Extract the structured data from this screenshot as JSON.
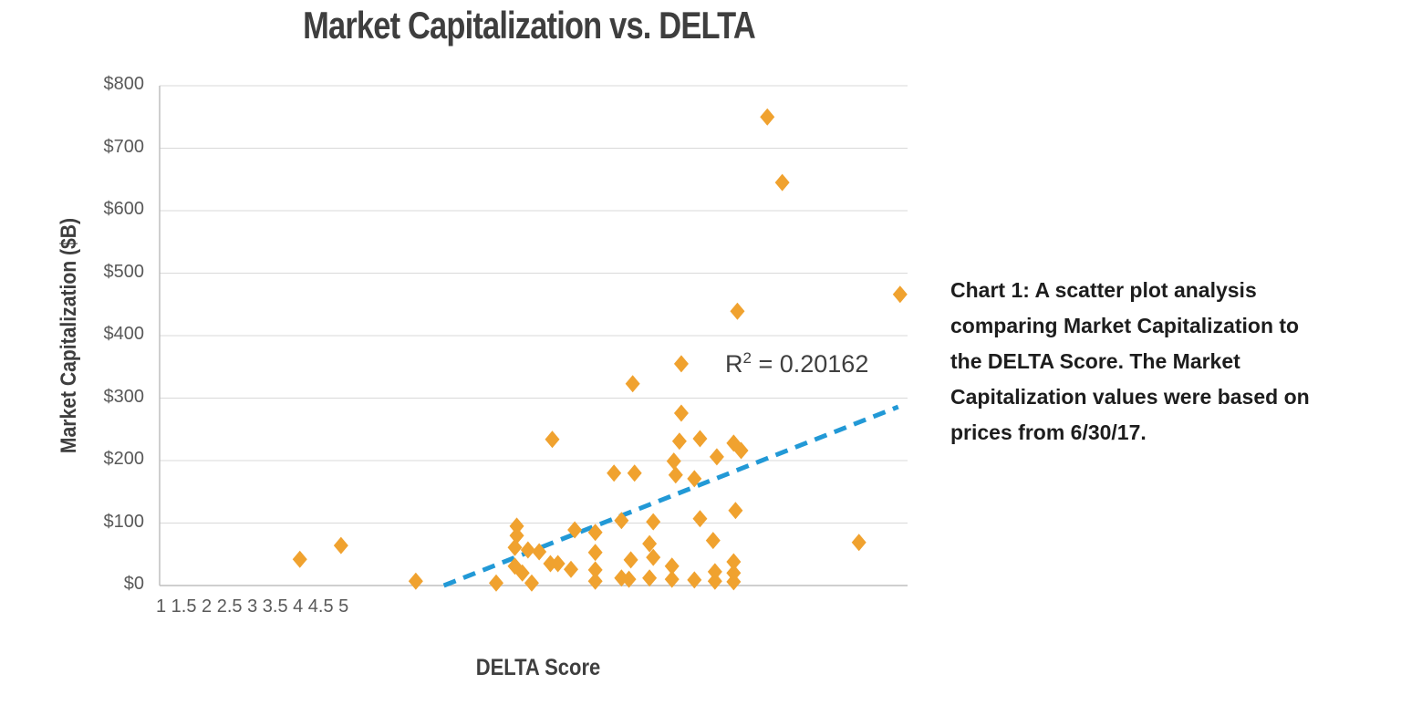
{
  "caption": {
    "lines": [
      "Chart 1: A scatter plot analysis",
      "comparing Market Capitalization to",
      "the DELTA Score. The Market",
      "Capitalization values were based on",
      "prices from 6/30/17."
    ]
  },
  "chart_data": {
    "type": "scatter",
    "title": "Market Capitalization vs. DELTA",
    "xlabel": "DELTA Score",
    "ylabel": "Market Capitalization ($B)",
    "xlim": [
      1,
      5
    ],
    "ylim": [
      0,
      800
    ],
    "grid": "horizontal",
    "gridline_color": "#d9d9d9",
    "axis_line_color": "#bfbfbf",
    "x_tick_labels": [
      "1",
      "1.5",
      "2",
      "2.5",
      "3",
      "3.5",
      "4",
      "4.5",
      "5"
    ],
    "y_tick_labels": [
      "$800",
      "$700",
      "$600",
      "$500",
      "$400",
      "$300",
      "$200",
      "$100",
      "$0"
    ],
    "r_squared": 0.20162,
    "r_squared_parts": {
      "base": "R",
      "sup": "2",
      "rest": " = 0.20162"
    },
    "series": [
      {
        "name": "Market Capitalization vs. DELTA",
        "marker": "diamond",
        "color": "#F0A22F",
        "points": [
          {
            "delta": 1.75,
            "cap_b": 42
          },
          {
            "delta": 1.97,
            "cap_b": 64
          },
          {
            "delta": 2.37,
            "cap_b": 7
          },
          {
            "delta": 2.8,
            "cap_b": 4
          },
          {
            "delta": 2.91,
            "cap_b": 95
          },
          {
            "delta": 2.91,
            "cap_b": 80
          },
          {
            "delta": 2.9,
            "cap_b": 61
          },
          {
            "delta": 2.97,
            "cap_b": 57
          },
          {
            "delta": 3.03,
            "cap_b": 54
          },
          {
            "delta": 2.9,
            "cap_b": 31
          },
          {
            "delta": 2.94,
            "cap_b": 20
          },
          {
            "delta": 2.99,
            "cap_b": 4
          },
          {
            "delta": 3.09,
            "cap_b": 35
          },
          {
            "delta": 3.13,
            "cap_b": 35
          },
          {
            "delta": 3.2,
            "cap_b": 26
          },
          {
            "delta": 3.22,
            "cap_b": 89
          },
          {
            "delta": 3.33,
            "cap_b": 85
          },
          {
            "delta": 3.33,
            "cap_b": 53
          },
          {
            "delta": 3.33,
            "cap_b": 25
          },
          {
            "delta": 3.33,
            "cap_b": 7
          },
          {
            "delta": 3.1,
            "cap_b": 234
          },
          {
            "delta": 3.53,
            "cap_b": 323
          },
          {
            "delta": 3.43,
            "cap_b": 180
          },
          {
            "delta": 3.54,
            "cap_b": 180
          },
          {
            "delta": 3.47,
            "cap_b": 104
          },
          {
            "delta": 3.64,
            "cap_b": 102
          },
          {
            "delta": 3.52,
            "cap_b": 41
          },
          {
            "delta": 3.62,
            "cap_b": 67
          },
          {
            "delta": 3.64,
            "cap_b": 45
          },
          {
            "delta": 3.47,
            "cap_b": 12
          },
          {
            "delta": 3.51,
            "cap_b": 10
          },
          {
            "delta": 3.62,
            "cap_b": 12
          },
          {
            "delta": 3.74,
            "cap_b": 31
          },
          {
            "delta": 3.74,
            "cap_b": 10
          },
          {
            "delta": 3.86,
            "cap_b": 9
          },
          {
            "delta": 3.89,
            "cap_b": 107
          },
          {
            "delta": 3.75,
            "cap_b": 199
          },
          {
            "delta": 3.76,
            "cap_b": 177
          },
          {
            "delta": 3.79,
            "cap_b": 276
          },
          {
            "delta": 3.78,
            "cap_b": 231
          },
          {
            "delta": 3.86,
            "cap_b": 171
          },
          {
            "delta": 3.89,
            "cap_b": 235
          },
          {
            "delta": 3.98,
            "cap_b": 206
          },
          {
            "delta": 4.07,
            "cap_b": 228
          },
          {
            "delta": 4.11,
            "cap_b": 216
          },
          {
            "delta": 3.96,
            "cap_b": 72
          },
          {
            "delta": 3.97,
            "cap_b": 22
          },
          {
            "delta": 3.97,
            "cap_b": 7
          },
          {
            "delta": 4.07,
            "cap_b": 38
          },
          {
            "delta": 4.07,
            "cap_b": 20
          },
          {
            "delta": 4.07,
            "cap_b": 6
          },
          {
            "delta": 4.08,
            "cap_b": 120
          },
          {
            "delta": 4.25,
            "cap_b": 750
          },
          {
            "delta": 4.33,
            "cap_b": 645
          },
          {
            "delta": 4.09,
            "cap_b": 439
          },
          {
            "delta": 3.79,
            "cap_b": 355
          },
          {
            "delta": 4.96,
            "cap_b": 466
          },
          {
            "delta": 4.74,
            "cap_b": 69
          }
        ]
      }
    ],
    "trendline": {
      "style": "dashed",
      "color": "#2299D6",
      "from": {
        "delta": 2.52,
        "cap_b": 0
      },
      "to": {
        "delta": 4.95,
        "cap_b": 286
      }
    }
  }
}
